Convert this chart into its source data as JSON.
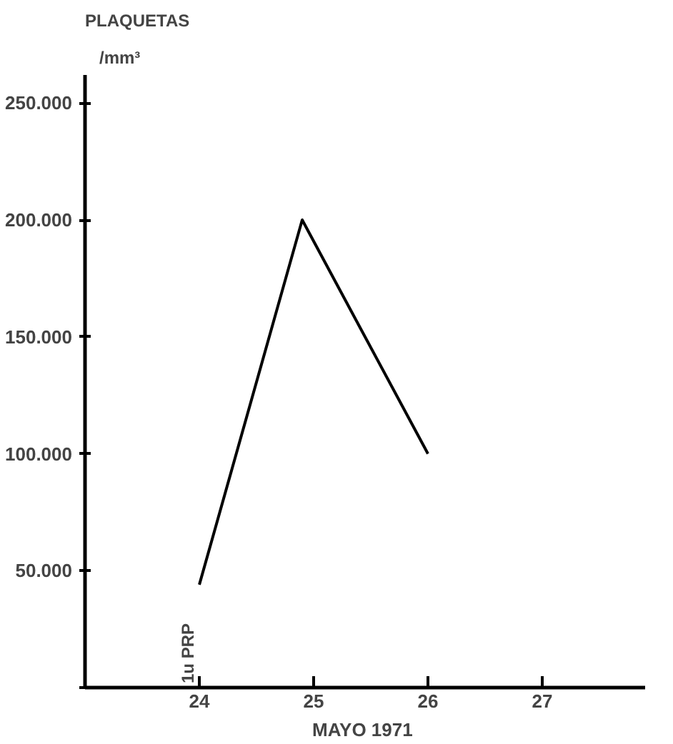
{
  "chart_data": {
    "type": "line",
    "title": "PLAQUETAS",
    "subtitle": "/mm³",
    "xlabel": "MAYO  1971",
    "x": [
      24,
      24.9,
      26
    ],
    "series": [
      {
        "color": "#000000",
        "values": [
          44000,
          200000,
          100000
        ]
      }
    ],
    "xlim": [
      23,
      27.9
    ],
    "xticks": [
      24,
      25,
      26,
      27
    ],
    "ylim": [
      0,
      262000
    ],
    "yticks": [
      {
        "value": 0,
        "label": null
      },
      {
        "value": 50000,
        "label": "50.000"
      },
      {
        "value": 100000,
        "label": "100.000"
      },
      {
        "value": 150000,
        "label": "150.000"
      },
      {
        "value": 200000,
        "label": "200.000"
      },
      {
        "value": 250000,
        "label": "250.000"
      }
    ],
    "annotations": [
      "1u PRP"
    ],
    "grid": false,
    "marker": "none",
    "line_style": "solid"
  }
}
